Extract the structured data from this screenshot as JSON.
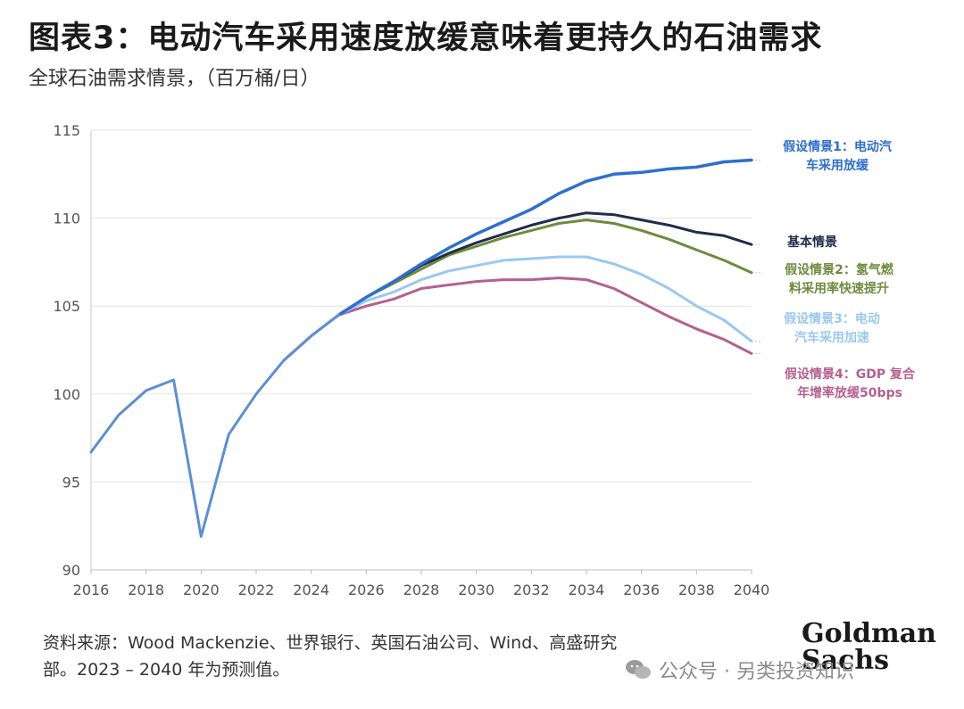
{
  "header": {
    "title": "图表3：电动汽车采用速度放缓意味着更持久的石油需求",
    "subtitle": "全球石油需求情景，（百万桶/日）"
  },
  "footer": {
    "source_line1": "资料来源：Wood Mackenzie、世界银行、英国石油公司、Wind、高盛研究",
    "source_line2": "部。2023 – 2040 年为预测值。",
    "logo_line1": "Goldman",
    "logo_line2": "Sachs",
    "watermark": "公众号 · 另类投资知识"
  },
  "chart_data": {
    "type": "line",
    "xlim": [
      2016,
      2040
    ],
    "ylim": [
      90,
      115
    ],
    "x_ticks": [
      "2016",
      "2018",
      "2020",
      "2022",
      "2024",
      "2026",
      "2028",
      "2030",
      "2032",
      "2034",
      "2036",
      "2038",
      "2040"
    ],
    "y_ticks": [
      "90",
      "95",
      "100",
      "105",
      "110",
      "115"
    ],
    "grid": "horizontal",
    "colors": {
      "historical": "#5b8fd4",
      "s1": "#2e6fce",
      "base": "#1f2d4a",
      "s2": "#6e8b3d",
      "s3": "#9cc8f0",
      "s4": "#b5608f"
    },
    "series": [
      {
        "id": "historical",
        "name": "",
        "x": [
          2016,
          2017,
          2018,
          2019,
          2020,
          2021,
          2022,
          2023,
          2024,
          2025
        ],
        "y": [
          96.7,
          98.8,
          100.2,
          100.8,
          91.9,
          97.7,
          100.0,
          101.9,
          103.3,
          104.5
        ]
      },
      {
        "id": "s1",
        "name": "假设情景1：电动汽车采用放缓",
        "label_lines": [
          "假设情景1：电动汽",
          "车采用放缓"
        ],
        "x": [
          2025,
          2026,
          2027,
          2028,
          2029,
          2030,
          2031,
          2032,
          2033,
          2034,
          2035,
          2036,
          2037,
          2038,
          2039,
          2040
        ],
        "y": [
          104.5,
          105.5,
          106.4,
          107.4,
          108.3,
          109.1,
          109.8,
          110.5,
          111.4,
          112.1,
          112.5,
          112.6,
          112.8,
          112.9,
          113.2,
          113.3
        ]
      },
      {
        "id": "base",
        "name": "基本情景",
        "label_lines": [
          "基本情景"
        ],
        "x": [
          2025,
          2026,
          2027,
          2028,
          2029,
          2030,
          2031,
          2032,
          2033,
          2034,
          2035,
          2036,
          2037,
          2038,
          2039,
          2040
        ],
        "y": [
          104.5,
          105.5,
          106.4,
          107.3,
          108.0,
          108.6,
          109.1,
          109.6,
          110.0,
          110.3,
          110.2,
          109.9,
          109.6,
          109.2,
          109.0,
          108.5
        ]
      },
      {
        "id": "s2",
        "name": "假设情景2：氢气燃料采用率快速提升",
        "label_lines": [
          "假设情景2：氢气燃",
          "料采用率快速提升"
        ],
        "x": [
          2025,
          2026,
          2027,
          2028,
          2029,
          2030,
          2031,
          2032,
          2033,
          2034,
          2035,
          2036,
          2037,
          2038,
          2039,
          2040
        ],
        "y": [
          104.5,
          105.5,
          106.3,
          107.1,
          107.9,
          108.4,
          108.9,
          109.3,
          109.7,
          109.9,
          109.7,
          109.3,
          108.8,
          108.2,
          107.6,
          106.9
        ]
      },
      {
        "id": "s3",
        "name": "假设情景3：电动汽车采用加速",
        "label_lines": [
          "假设情景3：电动",
          "汽车采用加速"
        ],
        "x": [
          2025,
          2026,
          2027,
          2028,
          2029,
          2030,
          2031,
          2032,
          2033,
          2034,
          2035,
          2036,
          2037,
          2038,
          2039,
          2040
        ],
        "y": [
          104.5,
          105.3,
          105.8,
          106.5,
          107.0,
          107.3,
          107.6,
          107.7,
          107.8,
          107.8,
          107.4,
          106.8,
          106.0,
          105.0,
          104.2,
          103.0
        ]
      },
      {
        "id": "s4",
        "name": "假设情景4：GDP 复合年增率放缓50bps",
        "label_lines": [
          "假设情景4：GDP 复合",
          "年增率放缓50bps"
        ],
        "x": [
          2023,
          2024,
          2025,
          2026,
          2027,
          2028,
          2029,
          2030,
          2031,
          2032,
          2033,
          2034,
          2035,
          2036,
          2037,
          2038,
          2039,
          2040
        ],
        "y": [
          101.9,
          103.3,
          104.5,
          105.0,
          105.4,
          106.0,
          106.2,
          106.4,
          106.5,
          106.5,
          106.6,
          106.5,
          106.0,
          105.2,
          104.4,
          103.7,
          103.1,
          102.3
        ]
      }
    ]
  }
}
